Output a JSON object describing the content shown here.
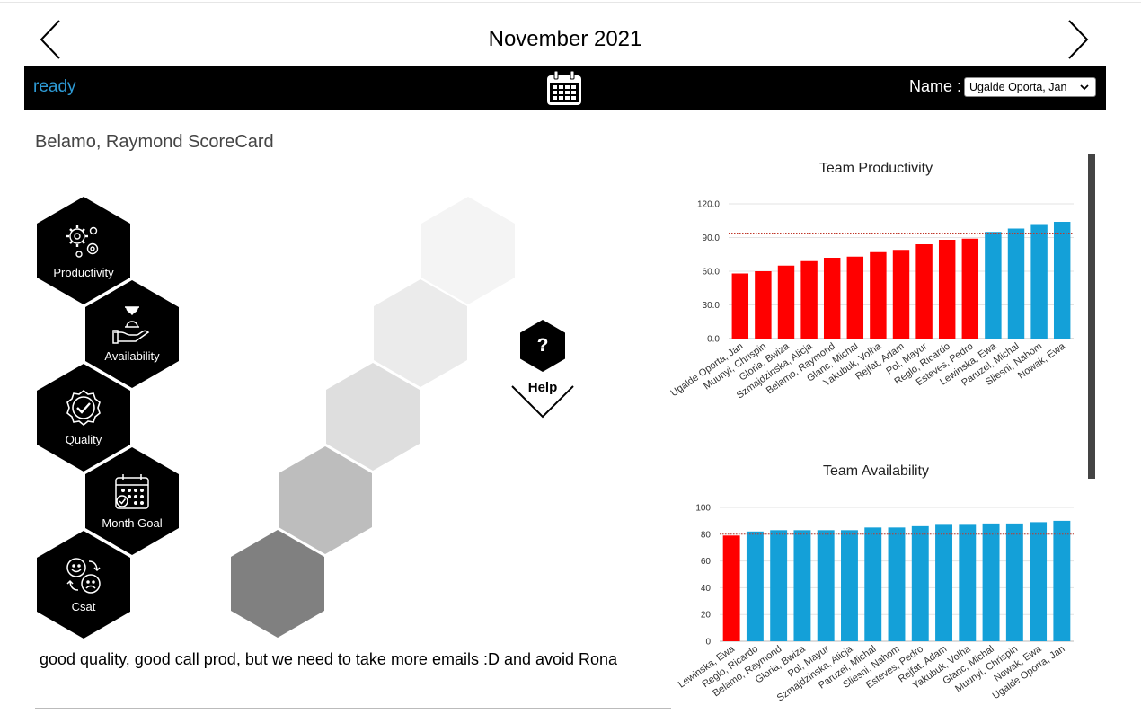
{
  "header": {
    "title": "November 2021"
  },
  "toolbar": {
    "status": "ready",
    "name_label": "Name :",
    "name_value": "Ugalde Oporta, Jan"
  },
  "scorecard": {
    "title": "Belamo, Raymond ScoreCard"
  },
  "menu": [
    {
      "label": "Productivity",
      "icon": "gears-icon"
    },
    {
      "label": "Availability",
      "icon": "hourglass-hand-icon"
    },
    {
      "label": "Quality",
      "icon": "badge-check-icon"
    },
    {
      "label": "Month Goal",
      "icon": "calendar-check-icon"
    },
    {
      "label": "Csat",
      "icon": "happy-sad-faces-icon"
    }
  ],
  "help": {
    "glyph": "?",
    "label": "Help"
  },
  "comment": "good quality, good call prod, but we need to take more emails :D and avoid Rona",
  "colors": {
    "below_target": "#ff0000",
    "above_target": "#14a0d8",
    "target_line": "#c0392b",
    "accent_text": "#2e9bd6"
  },
  "chart_data": [
    {
      "type": "bar",
      "title": "Team Productivity",
      "categories": [
        "Ugalde Oporta, Jan",
        "Muunyi, Chrispin",
        "Gloria, Bwiza",
        "Szmajdzinska, Alicja",
        "Belamo, Raymond",
        "Glanc, Michal",
        "Yakubuk, Volha",
        "Rejfat, Adam",
        "Pol, Mayur",
        "Reglo, Ricardo",
        "Esteves, Pedro",
        "Lewinska, Ewa",
        "Paruzel, Michal",
        "Sliesni, Nahom",
        "Nowak, Ewa"
      ],
      "values": [
        58,
        60,
        65,
        69,
        72,
        73,
        77,
        79,
        84,
        88,
        89,
        95,
        98,
        102,
        104
      ],
      "yticks": [
        "0.0",
        "30.0",
        "60.0",
        "90.0",
        "120.0"
      ],
      "ylim": [
        0,
        120
      ],
      "target": 94
    },
    {
      "type": "bar",
      "title": "Team Availability",
      "categories": [
        "Lewinska, Ewa",
        "Reglo, Ricardo",
        "Belamo, Raymond",
        "Gloria, Bwiza",
        "Pol, Mayur",
        "Szmajdzinska, Alicja",
        "Paruzel, Michal",
        "Sliesni, Nahom",
        "Esteves, Pedro",
        "Rejfat, Adam",
        "Yakubuk, Volha",
        "Glanc, Michal",
        "Muunyi, Chrispin",
        "Nowak, Ewa",
        "Ugalde Oporta, Jan"
      ],
      "values": [
        79,
        82,
        83,
        83,
        83,
        83,
        85,
        85,
        86,
        87,
        87,
        88,
        88,
        89,
        90
      ],
      "yticks": [
        "0",
        "20",
        "40",
        "60",
        "80",
        "100"
      ],
      "ylim": [
        0,
        100
      ],
      "target": 80
    }
  ]
}
